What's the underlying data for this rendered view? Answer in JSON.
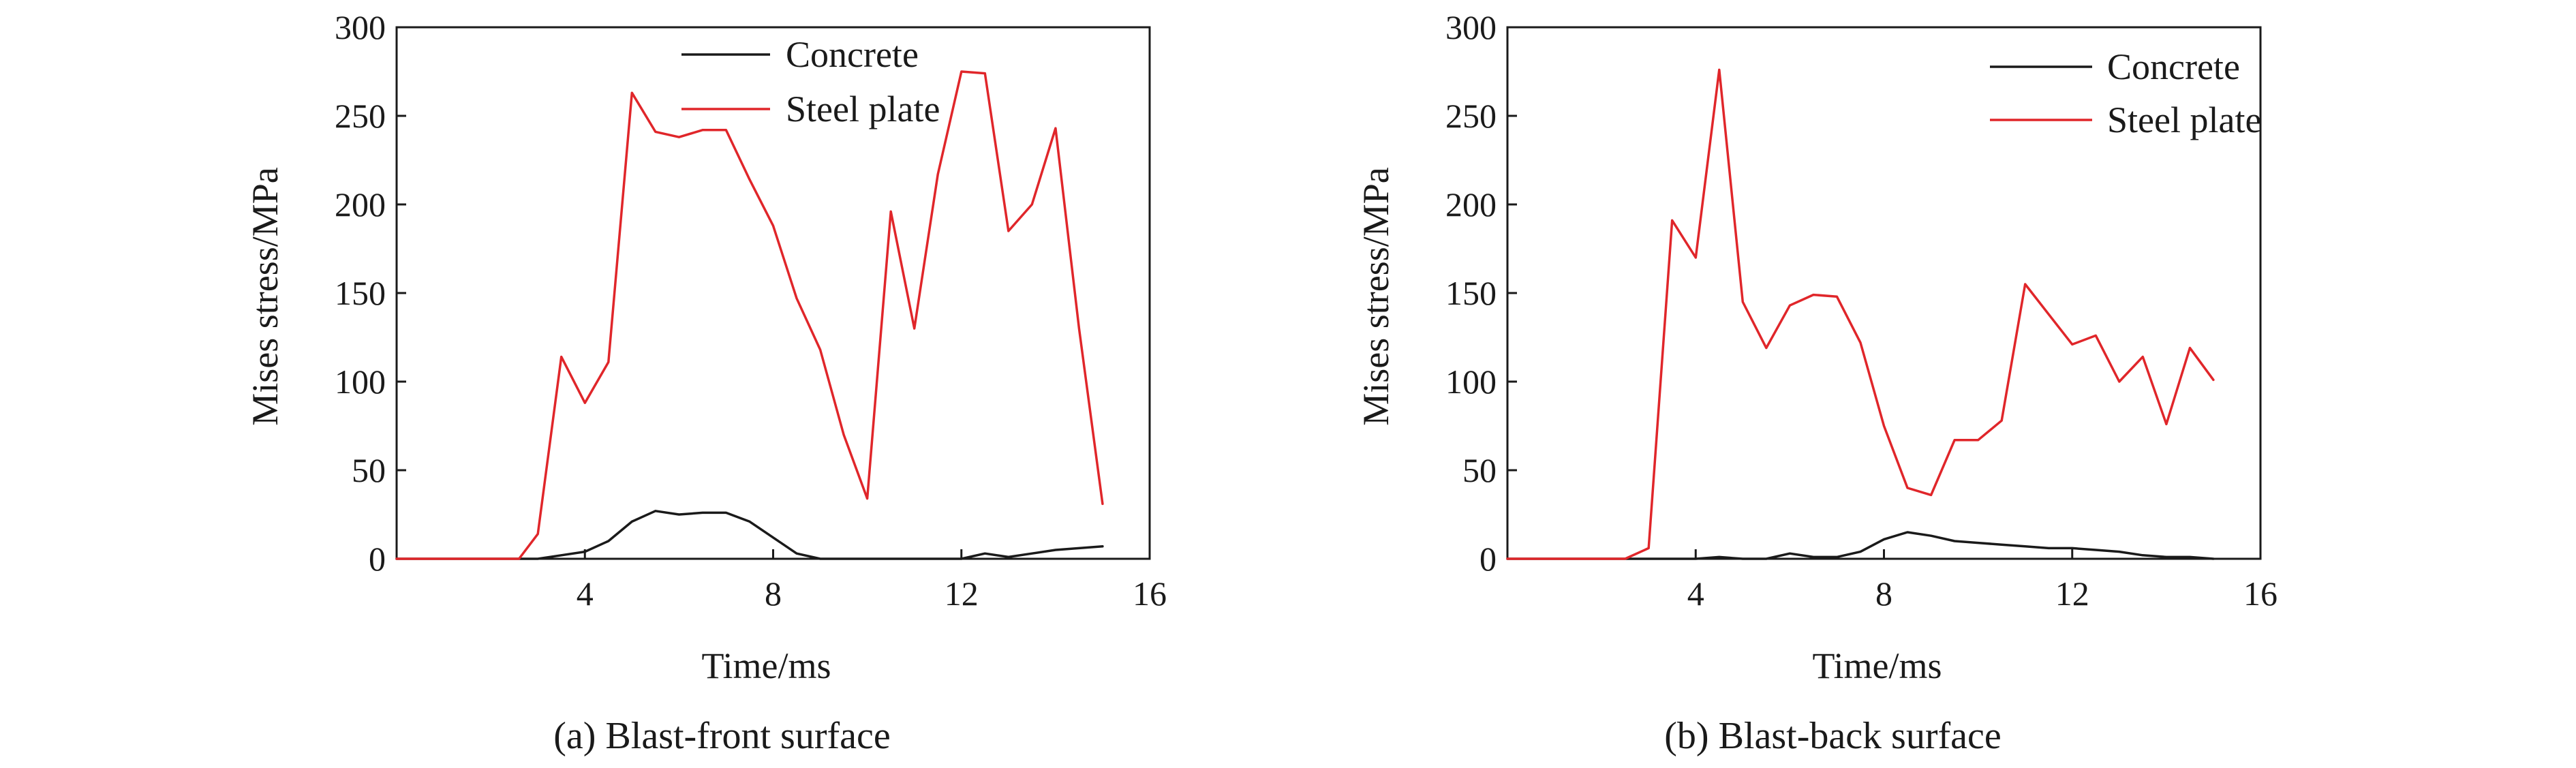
{
  "chart_data": [
    {
      "type": "line",
      "caption": "(a) Blast-front surface",
      "xlabel": "Time/ms",
      "ylabel": "Mises stress/MPa",
      "xlim": [
        0,
        16
      ],
      "ylim": [
        0,
        300
      ],
      "xticks": [
        4,
        8,
        12,
        16
      ],
      "yticks": [
        0,
        50,
        100,
        150,
        200,
        250,
        300
      ],
      "legend_position": "top-right",
      "series": [
        {
          "name": "Concrete",
          "color": "#1a1a1a",
          "x": [
            0,
            1,
            2,
            2.6,
            3,
            3.5,
            4,
            4.5,
            5,
            5.5,
            6,
            6.5,
            7,
            7.5,
            8,
            8.5,
            9,
            9.5,
            10,
            10.5,
            11,
            11.5,
            12,
            12.5,
            13,
            13.5,
            14,
            14.5,
            15
          ],
          "y": [
            0,
            0,
            0,
            0,
            0,
            2,
            4,
            10,
            21,
            27,
            25,
            26,
            26,
            21,
            12,
            3,
            0,
            0,
            0,
            0,
            0,
            0,
            0,
            3,
            1,
            3,
            5,
            6,
            7
          ]
        },
        {
          "name": "Steel plate",
          "color": "#e0262a",
          "x": [
            0,
            1,
            2,
            2.6,
            3,
            3.5,
            4,
            4.5,
            5,
            5.5,
            6,
            6.5,
            7,
            7.5,
            8,
            8.5,
            9,
            9.5,
            10,
            10.5,
            11,
            11.5,
            12,
            12.5,
            13,
            13.5,
            14,
            14.5,
            15
          ],
          "y": [
            0,
            0,
            0,
            0,
            14,
            114,
            88,
            111,
            263,
            241,
            238,
            242,
            242,
            214,
            188,
            147,
            118,
            70,
            34,
            196,
            130,
            217,
            275,
            274,
            185,
            200,
            243,
            130,
            31
          ]
        }
      ]
    },
    {
      "type": "line",
      "caption": "(b) Blast-back surface",
      "xlabel": "Time/ms",
      "ylabel": "Mises stress/MPa",
      "xlim": [
        0,
        16
      ],
      "ylim": [
        0,
        300
      ],
      "xticks": [
        4,
        8,
        12,
        16
      ],
      "yticks": [
        0,
        50,
        100,
        150,
        200,
        250,
        300
      ],
      "legend_position": "top-right",
      "series": [
        {
          "name": "Concrete",
          "color": "#1a1a1a",
          "x": [
            0,
            1,
            2,
            2.5,
            3,
            3.5,
            4,
            4.5,
            5,
            5.5,
            6,
            6.5,
            7,
            7.5,
            8,
            8.5,
            9,
            9.5,
            10,
            10.5,
            11,
            11.5,
            12,
            12.5,
            13,
            13.5,
            14,
            14.5,
            15
          ],
          "y": [
            0,
            0,
            0,
            0,
            0,
            0,
            0,
            1,
            0,
            0,
            3,
            1,
            1,
            4,
            11,
            15,
            13,
            10,
            9,
            8,
            7,
            6,
            6,
            5,
            4,
            2,
            1,
            1,
            0
          ]
        },
        {
          "name": "Steel plate",
          "color": "#e0262a",
          "x": [
            0,
            1,
            2,
            2.5,
            3,
            3.5,
            4,
            4.5,
            5,
            5.5,
            6,
            6.5,
            7,
            7.5,
            8,
            8.5,
            9,
            9.5,
            10,
            10.5,
            11,
            11.5,
            12,
            12.5,
            13,
            13.5,
            14,
            14.5,
            15
          ],
          "y": [
            0,
            0,
            0,
            0,
            6,
            191,
            170,
            276,
            145,
            119,
            143,
            149,
            148,
            122,
            75,
            40,
            36,
            67,
            67,
            78,
            155,
            138,
            121,
            126,
            100,
            114,
            76,
            119,
            101
          ]
        }
      ]
    }
  ]
}
